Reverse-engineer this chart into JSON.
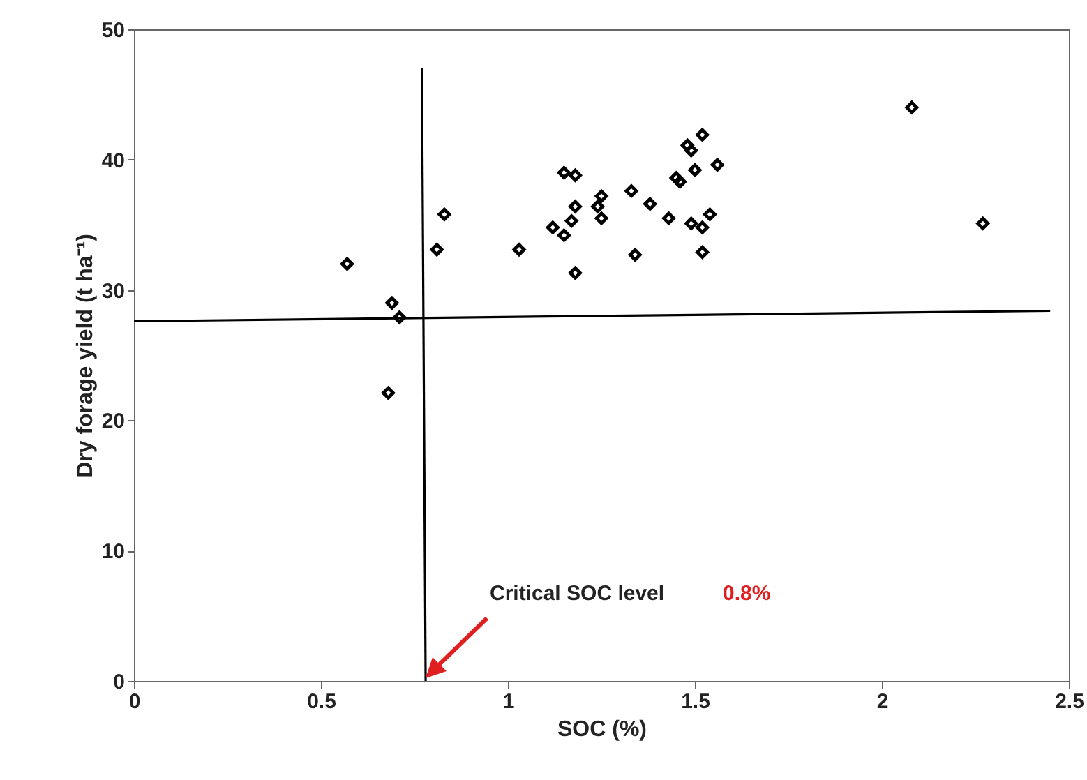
{
  "chart_data": {
    "type": "scatter",
    "xlabel": "SOC (%)",
    "ylabel": "Dry forage yield (t ha⁻¹)",
    "xlim": [
      0,
      2.5
    ],
    "ylim": [
      0,
      50
    ],
    "xticks": [
      0,
      0.5,
      1,
      1.5,
      2,
      2.5
    ],
    "yticks": [
      0,
      10,
      20,
      30,
      40,
      50
    ],
    "grid": false,
    "annotations": [
      "Critical SOC level",
      "0.8%"
    ],
    "series": [
      {
        "marker": "diamond",
        "color": "#000000",
        "x": [
          0.57,
          0.69,
          0.71,
          0.68,
          0.81,
          0.83,
          1.03,
          1.12,
          1.15,
          1.17,
          1.18,
          1.18,
          1.24,
          1.25,
          1.25,
          1.33,
          1.34,
          1.38,
          1.43,
          1.49,
          1.52,
          1.54,
          1.52,
          1.15,
          1.18,
          1.45,
          1.46,
          1.5,
          1.48,
          1.49,
          1.52,
          1.56,
          2.08,
          2.27
        ],
        "values": [
          32.0,
          29.0,
          27.9,
          22.1,
          33.1,
          35.8,
          33.1,
          34.8,
          34.2,
          35.3,
          36.4,
          31.3,
          36.4,
          37.2,
          35.5,
          37.6,
          32.7,
          36.6,
          35.5,
          35.1,
          34.8,
          35.8,
          32.9,
          39.0,
          38.8,
          38.6,
          38.3,
          39.2,
          41.1,
          40.7,
          41.9,
          39.6,
          44.0,
          35.1
        ]
      },
      {
        "type": "line",
        "color": "#000000",
        "line_style": "solid",
        "x": [
          0.77,
          0.78
        ],
        "values": [
          47,
          0
        ]
      },
      {
        "type": "line",
        "color": "#000000",
        "line_style": "solid",
        "x": [
          0,
          2.45
        ],
        "values": [
          27.6,
          28.4
        ]
      }
    ]
  }
}
